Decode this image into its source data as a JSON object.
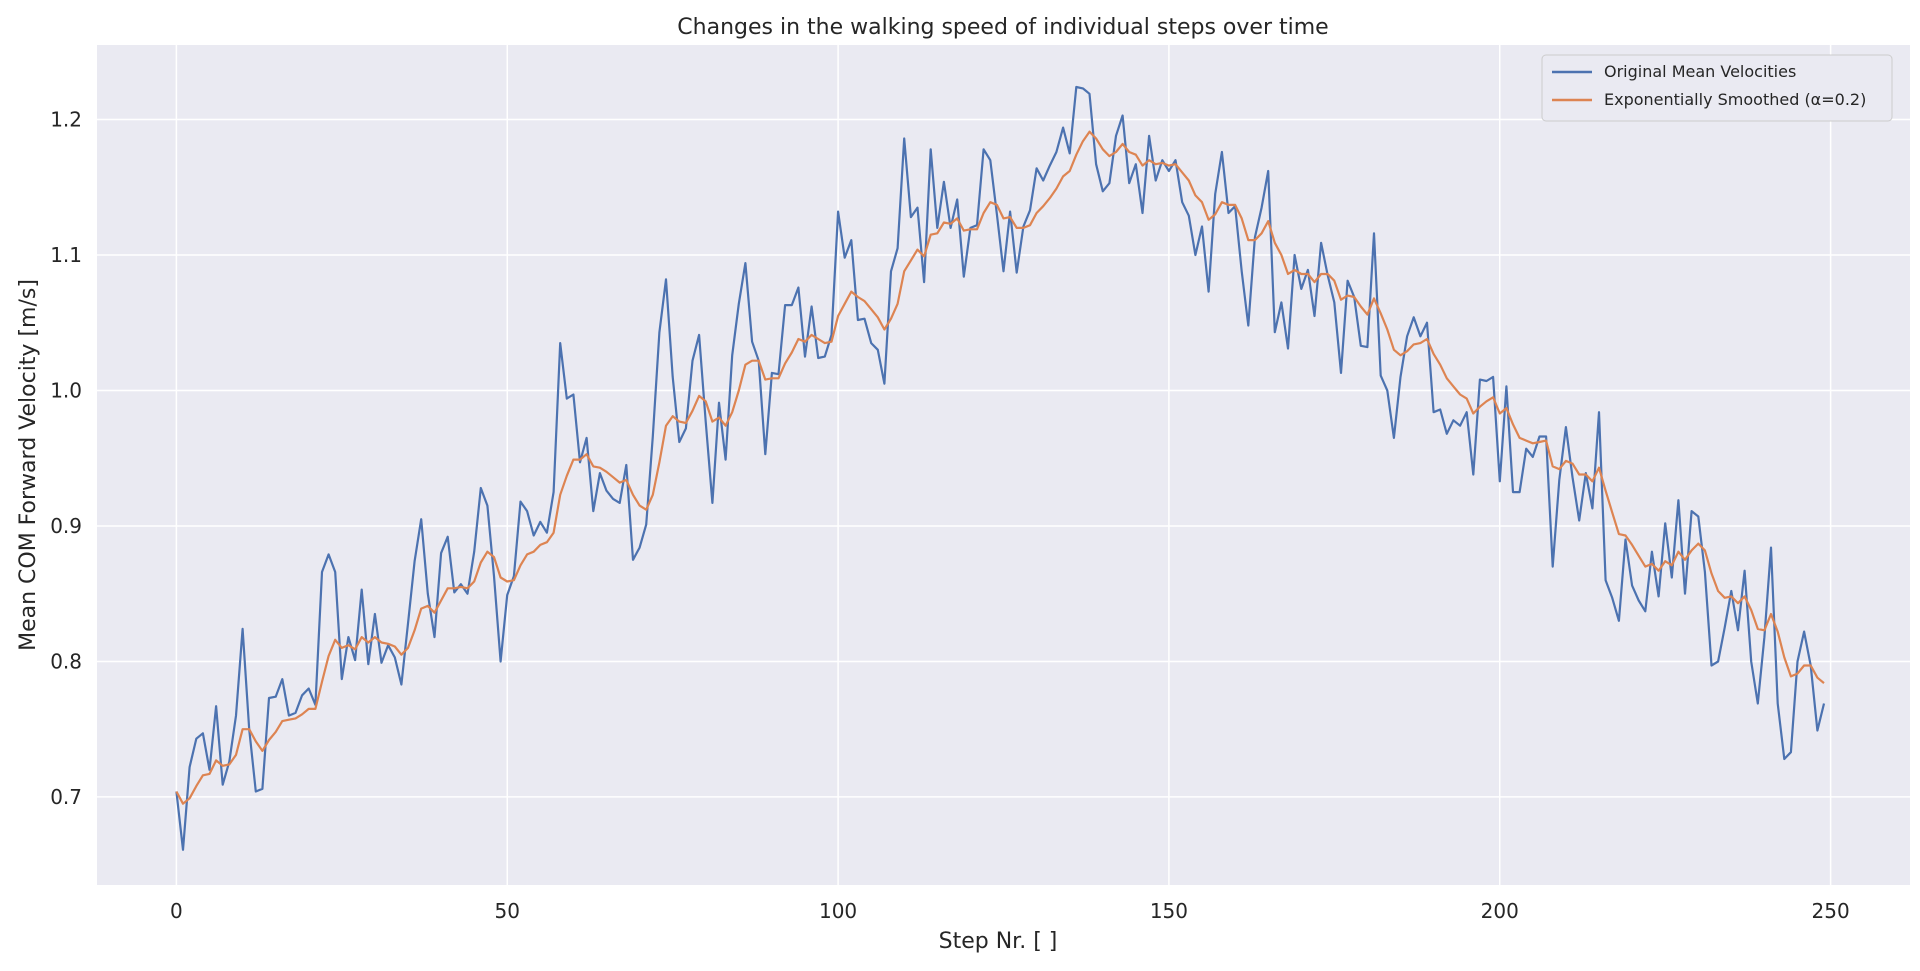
{
  "chart_data": {
    "type": "line",
    "title": "Changes in the walking speed of individual steps over time",
    "xlabel": "Step Nr. [ ]",
    "ylabel": "Mean COM Forward Velocity [m/s]",
    "xlim": [
      -12,
      262
    ],
    "ylim": [
      0.635,
      1.255
    ],
    "xticks": [
      0,
      50,
      100,
      150,
      200,
      250
    ],
    "xtick_labels": [
      "0",
      "50",
      "100",
      "150",
      "200",
      "250"
    ],
    "yticks": [
      0.7,
      0.8,
      0.9,
      1.0,
      1.1,
      1.2
    ],
    "ytick_labels": [
      "0.7",
      "0.8",
      "0.9",
      "1.0",
      "1.1",
      "1.2"
    ],
    "grid": true,
    "background": "#eaeaf2",
    "legend_position": "top-right",
    "series": [
      {
        "name": "Original Mean Velocities",
        "color": "#4c72b0",
        "values": [
          0.704,
          0.661,
          0.722,
          0.743,
          0.747,
          0.72,
          0.767,
          0.709,
          0.726,
          0.76,
          0.824,
          0.75,
          0.704,
          0.706,
          0.773,
          0.774,
          0.787,
          0.76,
          0.762,
          0.775,
          0.78,
          0.768,
          0.866,
          0.879,
          0.866,
          0.787,
          0.818,
          0.801,
          0.853,
          0.798,
          0.835,
          0.799,
          0.812,
          0.803,
          0.783,
          0.828,
          0.874,
          0.905,
          0.85,
          0.818,
          0.88,
          0.892,
          0.851,
          0.857,
          0.85,
          0.881,
          0.928,
          0.915,
          0.863,
          0.8,
          0.849,
          0.863,
          0.918,
          0.911,
          0.893,
          0.903,
          0.895,
          0.925,
          1.035,
          0.994,
          0.997,
          0.947,
          0.965,
          0.911,
          0.939,
          0.926,
          0.92,
          0.917,
          0.945,
          0.875,
          0.884,
          0.901,
          0.966,
          1.043,
          1.082,
          1.01,
          0.962,
          0.972,
          1.022,
          1.041,
          0.977,
          0.917,
          0.991,
          0.949,
          1.026,
          1.064,
          1.094,
          1.036,
          1.022,
          0.953,
          1.013,
          1.012,
          1.063,
          1.063,
          1.076,
          1.025,
          1.062,
          1.024,
          1.025,
          1.041,
          1.132,
          1.098,
          1.111,
          1.052,
          1.053,
          1.035,
          1.03,
          1.005,
          1.088,
          1.105,
          1.186,
          1.128,
          1.135,
          1.08,
          1.178,
          1.12,
          1.154,
          1.12,
          1.141,
          1.084,
          1.12,
          1.122,
          1.178,
          1.17,
          1.13,
          1.088,
          1.132,
          1.087,
          1.121,
          1.133,
          1.164,
          1.155,
          1.166,
          1.176,
          1.194,
          1.175,
          1.224,
          1.223,
          1.219,
          1.167,
          1.147,
          1.153,
          1.188,
          1.203,
          1.153,
          1.167,
          1.131,
          1.188,
          1.155,
          1.17,
          1.162,
          1.17,
          1.139,
          1.129,
          1.1,
          1.121,
          1.073,
          1.145,
          1.176,
          1.131,
          1.136,
          1.088,
          1.048,
          1.113,
          1.135,
          1.162,
          1.043,
          1.065,
          1.031,
          1.1,
          1.075,
          1.089,
          1.055,
          1.109,
          1.085,
          1.065,
          1.013,
          1.081,
          1.069,
          1.033,
          1.032,
          1.116,
          1.011,
          1.0,
          0.965,
          1.01,
          1.04,
          1.054,
          1.04,
          1.05,
          0.984,
          0.986,
          0.968,
          0.978,
          0.974,
          0.984,
          0.938,
          1.008,
          1.007,
          1.01,
          0.933,
          1.003,
          0.925,
          0.925,
          0.957,
          0.951,
          0.966,
          0.966,
          0.87,
          0.934,
          0.973,
          0.936,
          0.904,
          0.939,
          0.913,
          0.984,
          0.86,
          0.847,
          0.83,
          0.89,
          0.856,
          0.845,
          0.837,
          0.881,
          0.848,
          0.902,
          0.862,
          0.919,
          0.85,
          0.911,
          0.907,
          0.866,
          0.797,
          0.8,
          0.825,
          0.852,
          0.823,
          0.867,
          0.8,
          0.769,
          0.818,
          0.884,
          0.769,
          0.728,
          0.733,
          0.8,
          0.822,
          0.797,
          0.749,
          0.769
        ]
      },
      {
        "name": "Exponentially Smoothed (α=0.2)",
        "color": "#dd8452",
        "values": [
          0.704,
          0.695,
          0.699,
          0.708,
          0.716,
          0.717,
          0.727,
          0.723,
          0.724,
          0.731,
          0.75,
          0.75,
          0.741,
          0.734,
          0.742,
          0.748,
          0.756,
          0.757,
          0.758,
          0.761,
          0.765,
          0.765,
          0.785,
          0.804,
          0.816,
          0.81,
          0.812,
          0.809,
          0.818,
          0.814,
          0.818,
          0.814,
          0.813,
          0.811,
          0.805,
          0.81,
          0.823,
          0.839,
          0.841,
          0.836,
          0.845,
          0.854,
          0.854,
          0.855,
          0.854,
          0.859,
          0.873,
          0.881,
          0.877,
          0.862,
          0.859,
          0.86,
          0.871,
          0.879,
          0.881,
          0.886,
          0.888,
          0.895,
          0.923,
          0.937,
          0.949,
          0.949,
          0.953,
          0.944,
          0.943,
          0.94,
          0.936,
          0.932,
          0.934,
          0.923,
          0.915,
          0.912,
          0.923,
          0.947,
          0.974,
          0.981,
          0.977,
          0.976,
          0.985,
          0.996,
          0.992,
          0.977,
          0.98,
          0.974,
          0.984,
          1.0,
          1.019,
          1.022,
          1.022,
          1.008,
          1.009,
          1.009,
          1.02,
          1.028,
          1.038,
          1.036,
          1.041,
          1.038,
          1.035,
          1.036,
          1.055,
          1.064,
          1.073,
          1.069,
          1.066,
          1.06,
          1.054,
          1.045,
          1.053,
          1.064,
          1.088,
          1.096,
          1.104,
          1.099,
          1.115,
          1.116,
          1.124,
          1.123,
          1.127,
          1.118,
          1.119,
          1.119,
          1.131,
          1.139,
          1.137,
          1.127,
          1.128,
          1.12,
          1.12,
          1.122,
          1.131,
          1.136,
          1.142,
          1.149,
          1.158,
          1.162,
          1.174,
          1.184,
          1.191,
          1.186,
          1.178,
          1.173,
          1.176,
          1.182,
          1.176,
          1.174,
          1.166,
          1.17,
          1.167,
          1.168,
          1.166,
          1.167,
          1.161,
          1.155,
          1.144,
          1.139,
          1.126,
          1.13,
          1.139,
          1.137,
          1.137,
          1.127,
          1.111,
          1.111,
          1.116,
          1.125,
          1.109,
          1.1,
          1.086,
          1.089,
          1.086,
          1.086,
          1.08,
          1.086,
          1.086,
          1.081,
          1.067,
          1.07,
          1.069,
          1.062,
          1.056,
          1.068,
          1.057,
          1.045,
          1.03,
          1.026,
          1.029,
          1.034,
          1.035,
          1.038,
          1.027,
          1.019,
          1.009,
          1.003,
          0.997,
          0.994,
          0.983,
          0.988,
          0.992,
          0.995,
          0.983,
          0.987,
          0.975,
          0.965,
          0.963,
          0.961,
          0.962,
          0.963,
          0.944,
          0.942,
          0.948,
          0.946,
          0.938,
          0.938,
          0.933,
          0.943,
          0.926,
          0.91,
          0.894,
          0.893,
          0.886,
          0.878,
          0.87,
          0.872,
          0.867,
          0.874,
          0.871,
          0.881,
          0.875,
          0.882,
          0.887,
          0.882,
          0.865,
          0.852,
          0.847,
          0.848,
          0.843,
          0.848,
          0.838,
          0.824,
          0.823,
          0.835,
          0.822,
          0.803,
          0.789,
          0.791,
          0.797,
          0.797,
          0.788,
          0.784
        ]
      }
    ]
  }
}
